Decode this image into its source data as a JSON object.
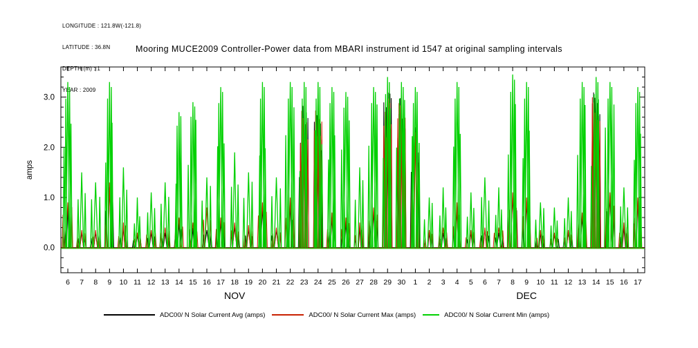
{
  "meta": {
    "lines": [
      "LONGITUDE : 121.8W(-121.8)",
      "LATITUDE : 36.8N",
      "DEPTH (m) : 1",
      "YEAR : 2009"
    ]
  },
  "title": "Mooring MUCE2009 Controller-Power data from MBARI instrument id 1547 at original sampling intervals",
  "chart_data": {
    "type": "line",
    "title": "Mooring MUCE2009 Controller-Power data from MBARI instrument id 1547 at original sampling intervals",
    "xlabel": "",
    "ylabel": "amps",
    "ylim": [
      -0.5,
      3.6
    ],
    "grid": false,
    "legend_position": "bottom",
    "yticks": [
      0.0,
      1.0,
      2.0,
      3.0
    ],
    "ytick_labels": [
      "0.0",
      "1.0",
      "2.0",
      "3.0"
    ],
    "x_day_labels": [
      "6",
      "7",
      "8",
      "9",
      "10",
      "11",
      "12",
      "13",
      "14",
      "15",
      "16",
      "17",
      "18",
      "19",
      "20",
      "21",
      "22",
      "23",
      "24",
      "25",
      "26",
      "27",
      "28",
      "29",
      "30",
      "1",
      "2",
      "3",
      "4",
      "5",
      "6",
      "7",
      "8",
      "9",
      "10",
      "11",
      "12",
      "13",
      "14",
      "15",
      "16",
      "17"
    ],
    "month_labels": [
      {
        "label": "NOV",
        "center_day_index": 12
      },
      {
        "label": "DEC",
        "center_day_index": 33
      }
    ],
    "legend": [
      {
        "label": "ADC00/ N Solar Current Avg (amps)",
        "color": "#000000"
      },
      {
        "label": "ADC00/ N Solar Current Max (amps)",
        "color": "#c82000"
      },
      {
        "label": "ADC00/ N Solar Current Min (amps)",
        "color": "#00d000"
      }
    ],
    "series": [
      {
        "name": "ADC00/ N Solar Current Avg (amps)",
        "color": "#000000",
        "daily_peaks": [
          0.8,
          0.3,
          0.3,
          1.2,
          0.4,
          0.25,
          0.3,
          0.3,
          0.5,
          0.4,
          0.35,
          0.5,
          0.4,
          0.35,
          0.8,
          0.35,
          0.9,
          2.9,
          2.8,
          0.6,
          0.5,
          0.4,
          0.7,
          3.1,
          3.0,
          2.4,
          0.3,
          0.3,
          0.8,
          0.3,
          0.35,
          0.3,
          1.0,
          0.9,
          0.3,
          0.25,
          0.3,
          0.6,
          3.2,
          1.0,
          0.4,
          1.0
        ]
      },
      {
        "name": "ADC00/ N Solar Current Max (amps)",
        "color": "#c82000",
        "daily_peaks": [
          0.9,
          0.35,
          0.35,
          1.3,
          0.5,
          0.3,
          0.35,
          0.4,
          0.6,
          0.5,
          0.8,
          0.6,
          0.5,
          0.45,
          0.9,
          0.4,
          1.0,
          2.8,
          2.9,
          0.7,
          0.6,
          0.5,
          0.8,
          3.0,
          2.9,
          2.3,
          0.35,
          0.4,
          0.9,
          0.35,
          0.4,
          0.4,
          1.1,
          1.0,
          0.35,
          0.3,
          0.35,
          0.7,
          3.1,
          1.1,
          0.5,
          1.0
        ]
      },
      {
        "name": "ADC00/ N Solar Current Min (amps)",
        "color": "#00d000",
        "daily_peaks": [
          3.3,
          1.5,
          1.3,
          3.3,
          1.6,
          1.0,
          1.1,
          1.3,
          2.7,
          2.9,
          1.4,
          3.2,
          1.9,
          1.5,
          3.3,
          1.4,
          3.3,
          3.3,
          3.3,
          3.2,
          3.1,
          1.6,
          3.2,
          3.4,
          3.3,
          3.2,
          1.0,
          1.2,
          3.3,
          1.1,
          1.4,
          1.2,
          3.45,
          3.3,
          0.9,
          0.8,
          1.0,
          3.3,
          3.4,
          3.3,
          1.2,
          3.2
        ]
      }
    ]
  }
}
